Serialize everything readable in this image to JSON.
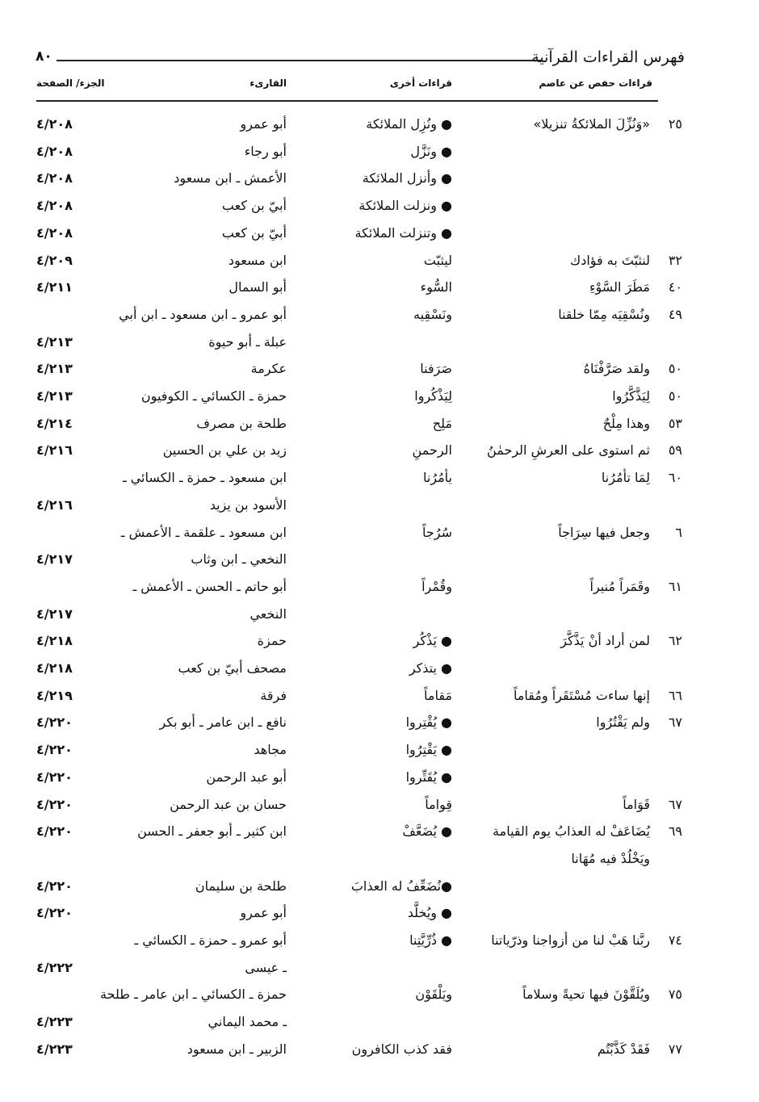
{
  "header": {
    "title": "فهرس القراءات القرآنية",
    "page_number": "٨٠",
    "columns": [
      "قراءات حفص عن عاصم",
      "قراءات أخرى",
      "القارىء",
      "الجزء/ الصفحة"
    ]
  },
  "rows": [
    {
      "num": "٢٥",
      "hafs": "«وَنُزِّلَ الملائكةُ تنزيلا»",
      "other": "● ونُزِل الملائكة",
      "reader": "أبو عمرو",
      "ref": "٤/٢٠٨"
    },
    {
      "num": "",
      "hafs": "",
      "other": "● ونَزَّل",
      "reader": "أبو رجاء",
      "ref": "٤/٢٠٨"
    },
    {
      "num": "",
      "hafs": "",
      "other": "● وأنزل الملائكة",
      "reader": "الأعمش ـ ابن مسعود",
      "ref": "٤/٢٠٨"
    },
    {
      "num": "",
      "hafs": "",
      "other": "● ونزلت الملائكة",
      "reader": "أبيّ بن كعب",
      "ref": "٤/٢٠٨"
    },
    {
      "num": "",
      "hafs": "",
      "other": "● وتنزلت الملائكة",
      "reader": "أبيّ بن كعب",
      "ref": "٤/٢٠٨"
    },
    {
      "num": "٣٢",
      "hafs": "لنثبّتَ به فؤادك",
      "other": "ليثبّت",
      "reader": "ابن مسعود",
      "ref": "٤/٢٠٩"
    },
    {
      "num": "٤٠",
      "hafs": "مَطَرَ السَّوْءِ",
      "other": "السُّوء",
      "reader": "أبو السمال",
      "ref": "٤/٢١١"
    },
    {
      "num": "٤٩",
      "hafs": "ونُسْقِيَه مِمّا خلقنا",
      "other": "ونَسْقِيه",
      "reader": "أبو عمرو ـ ابن مسعود ـ ابن أبي",
      "ref": ""
    },
    {
      "num": "",
      "hafs": "",
      "other": "",
      "reader": "عبلة ـ أبو حيوة",
      "ref": "٤/٢١٣"
    },
    {
      "num": "٥٠",
      "hafs": "ولقد صَرَّفْنَاهُ",
      "other": "صَرَفنا",
      "reader": "عكرمة",
      "ref": "٤/٢١٣"
    },
    {
      "num": "٥٠",
      "hafs": "لِيَذَّكَّرُوا",
      "other": "لِيَذْكُروا",
      "reader": "حمزة ـ الكسائي ـ الكوفيون",
      "ref": "٤/٢١٣"
    },
    {
      "num": "٥٣",
      "hafs": "وهذا مِلْحٌ",
      "other": "مَلِح",
      "reader": "طلحة بن مصرف",
      "ref": "٤/٢١٤"
    },
    {
      "num": "٥٩",
      "hafs": "ثم استوى على العرشِ الرحمٰنُ",
      "other": "الرحمنِ",
      "reader": "زيد بن علي بن الحسين",
      "ref": "٤/٢١٦"
    },
    {
      "num": "٦٠",
      "hafs": "لِمَا تأمُرُنا",
      "other": "يأمُرُنا",
      "reader": "ابن مسعود ـ حمزة ـ الكسائي ـ",
      "ref": ""
    },
    {
      "num": "",
      "hafs": "",
      "other": "",
      "reader": "الأسود بن يزيد",
      "ref": "٤/٢١٦"
    },
    {
      "num": "٦",
      "hafs": "وجعل فيها سِرَاجاً",
      "other": "سُرُجاً",
      "reader": "ابن مسعود ـ علقمة ـ الأعمش ـ",
      "ref": ""
    },
    {
      "num": "",
      "hafs": "",
      "other": "",
      "reader": "النخعي ـ ابن وثاب",
      "ref": "٤/٢١٧"
    },
    {
      "num": "٦١",
      "hafs": "وقَمَراً مُنيراً",
      "other": "وقُمْراً",
      "reader": "أبو حاتم ـ الحسن ـ الأعمش ـ",
      "ref": ""
    },
    {
      "num": "",
      "hafs": "",
      "other": "",
      "reader": "النخعي",
      "ref": "٤/٢١٧"
    },
    {
      "num": "٦٢",
      "hafs": "لمن أراد أنْ يَذَّكَّرَ",
      "other": "● يَذْكُر",
      "reader": "حمزة",
      "ref": "٤/٢١٨"
    },
    {
      "num": "",
      "hafs": "",
      "other": "● يتذكر",
      "reader": "مصحف أبيّ بن كعب",
      "ref": "٤/٢١٨"
    },
    {
      "num": "٦٦",
      "hafs": "إنها ساءت مُسْتَقَراً ومُقاماً",
      "other": "مَقاماً",
      "reader": "فرقة",
      "ref": "٤/٢١٩"
    },
    {
      "num": "٦٧",
      "hafs": "ولم يَقْتُرُوا",
      "other": "● يُقْتِروا",
      "reader": "نافع ـ ابن عامر ـ أبو بكر",
      "ref": "٤/٢٢٠"
    },
    {
      "num": "",
      "hafs": "",
      "other": "● يَقْتِرُوا",
      "reader": "مجاهد",
      "ref": "٤/٢٢٠"
    },
    {
      "num": "",
      "hafs": "",
      "other": "● يُقَتِّروا",
      "reader": "أبو عبد الرحمن",
      "ref": "٤/٢٢٠"
    },
    {
      "num": "٦٧",
      "hafs": "قَوَاماً",
      "other": "قِواماً",
      "reader": "حسان بن عبد الرحمن",
      "ref": "٤/٢٢٠"
    },
    {
      "num": "٦٩",
      "hafs": "يُضَاعَفْ له العذابُ يوم القيامة",
      "other": "● يُضَعَّفْ",
      "reader": "ابن كثير ـ أبو جعفر ـ الحسن",
      "ref": "٤/٢٢٠"
    },
    {
      "num": "",
      "hafs": "ويَخْلُدْ فيه مُهَانا",
      "other": "",
      "reader": "",
      "ref": ""
    },
    {
      "num": "",
      "hafs": "",
      "other": "●نُضَعِّفُ له العذابَ",
      "reader": "طلحة بن سليمان",
      "ref": "٤/٢٢٠"
    },
    {
      "num": "",
      "hafs": "",
      "other": "● ويُخلَّد",
      "reader": "أبو عمرو",
      "ref": "٤/٢٢٠"
    },
    {
      "num": "٧٤",
      "hafs": "ربَّنا هَبْ لنا من أزواجنا وذرّياتنا",
      "other": "● ذُرِّيَّتِنا",
      "reader": "أبو عمرو ـ حمزة ـ الكسائي ـ",
      "ref": ""
    },
    {
      "num": "",
      "hafs": "",
      "other": "",
      "reader": "ـ عيسى",
      "ref": "٤/٢٢٢"
    },
    {
      "num": "٧٥",
      "hafs": "ويُلَقَّوْنَ فيها تحيةً وسلاماً",
      "other": "ويَلْقَوْن",
      "reader": "حمزة ـ الكسائي ـ ابن عامر ـ طلحة",
      "ref": ""
    },
    {
      "num": "",
      "hafs": "",
      "other": "",
      "reader": "ـ محمد اليماني",
      "ref": "٤/٢٢٣"
    },
    {
      "num": "٧٧",
      "hafs": "فَقَدْ كَذَّبْتُم",
      "other": "فقد كذب الكافرون",
      "reader": "الزبير ـ ابن مسعود",
      "ref": "٤/٢٢٣"
    }
  ]
}
